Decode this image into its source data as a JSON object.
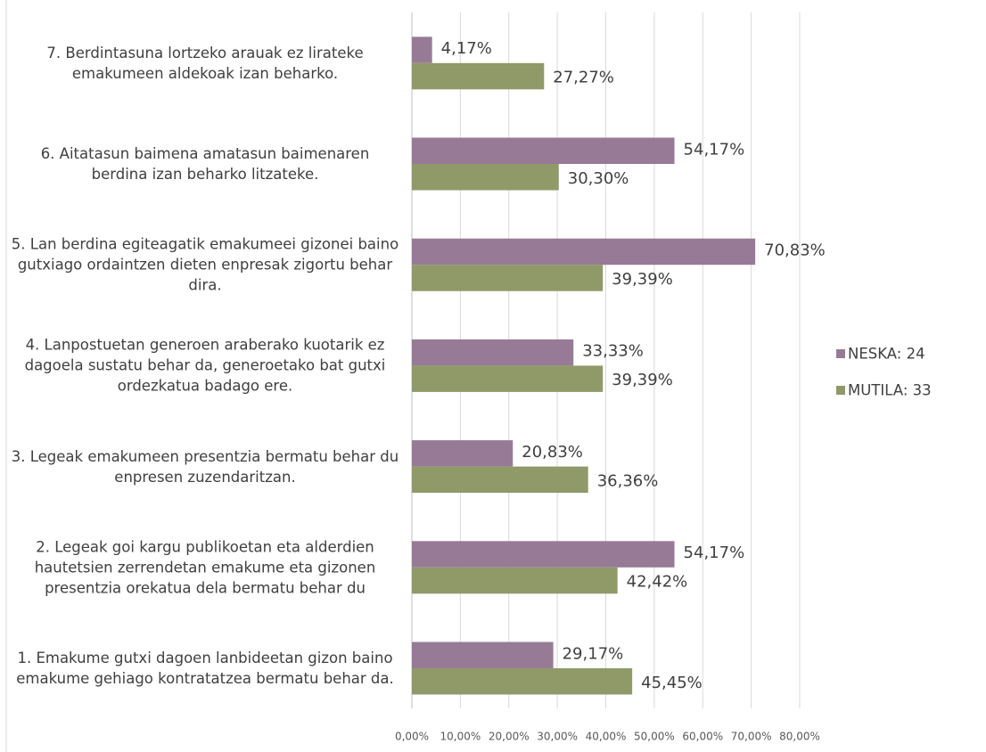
{
  "chart_data": {
    "type": "hbar",
    "categories": [
      "1. Emakume gutxi dagoen lanbideetan gizon baino emakume gehiago kontratatzea bermatu behar da.",
      "2. Legeak goi kargu publikoetan eta alderdien hautetsien zerrendetan emakume eta gizonen presentzia orekatua dela bermatu behar du",
      "3. Legeak emakumeen presentzia bermatu behar du enpresen zuzendaritzan.",
      "4. Lanpostuetan generoen araberako kuotarik ez dagoela sustatu behar da, generoetako bat gutxi ordezkatua badago ere.",
      "5. Lan berdina egiteagatik emakumeei gizonei baino gutxiago ordaintzen dieten enpresak zigortu behar dira.",
      "6. Aitatasun baimena amatasun baimenaren berdina izan beharko litzateke.",
      "7. Berdintasuna lortzeko arauak ez lirateke emakumeen aldekoak izan beharko."
    ],
    "series": [
      {
        "name": "NESKA: 24",
        "color": "#977b96",
        "values": [
          29.17,
          54.17,
          20.83,
          33.33,
          70.83,
          54.17,
          4.17
        ],
        "value_labels": [
          "29,17%",
          "54,17%",
          "20,83%",
          "33,33%",
          "70,83%",
          "54,17%",
          "4,17%"
        ]
      },
      {
        "name": "MUTILA: 33",
        "color": "#8f9a68",
        "values": [
          45.45,
          42.42,
          36.36,
          39.39,
          39.39,
          30.3,
          27.27
        ],
        "value_labels": [
          "45,45%",
          "42,42%",
          "36,36%",
          "39,39%",
          "39,39%",
          "30,30%",
          "27,27%"
        ]
      }
    ],
    "xlim": [
      0,
      80
    ],
    "xticks": [
      {
        "value": 0,
        "label": "0,00%"
      },
      {
        "value": 10,
        "label": "10,00%"
      },
      {
        "value": 20,
        "label": "20,00%"
      },
      {
        "value": 30,
        "label": "30,00%"
      },
      {
        "value": 40,
        "label": "40,00%"
      },
      {
        "value": 50,
        "label": "50,00%"
      },
      {
        "value": 60,
        "label": "60,00%"
      },
      {
        "value": 70,
        "label": "70,00%"
      },
      {
        "value": 80,
        "label": "80,00%"
      }
    ],
    "grid": true,
    "legend": "right"
  }
}
